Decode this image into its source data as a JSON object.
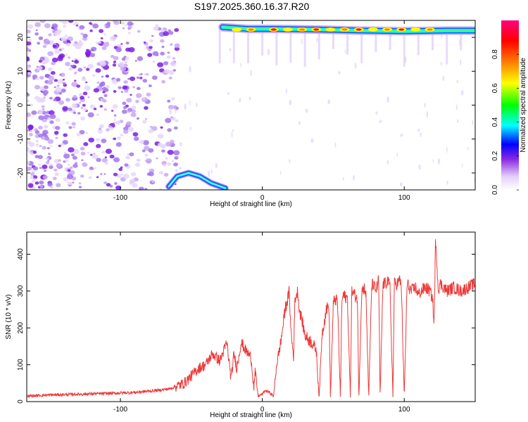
{
  "title": "S197.2025.360.16.37.R20",
  "colors": {
    "series": "#ee3a3a",
    "frame": "#000000"
  },
  "chart_data": [
    {
      "type": "heatmap",
      "xlabel": "Height of straight line (km)",
      "ylabel": "Frequency (Hz)",
      "xlim": [
        -166,
        150
      ],
      "ylim": [
        -25,
        25
      ],
      "xticks": [
        -100,
        0,
        100
      ],
      "yticks": [
        -20,
        -10,
        0,
        10,
        20
      ],
      "xtick_labels": [
        "-100",
        "0",
        "100"
      ],
      "ytick_labels": [
        "-20",
        "-10",
        "0",
        "10",
        "20"
      ],
      "colorbar": {
        "label": "Normalized spectral amplitude",
        "range": [
          0,
          1
        ],
        "ticks": [
          0.0,
          0.2,
          0.4,
          0.6,
          0.8
        ],
        "tick_labels": [
          "0.0",
          "0.2",
          "0.4",
          "0.6",
          "0.8"
        ],
        "colors": [
          "#ffffff",
          "#e4cef8",
          "#8a2be2",
          "#0000ff",
          "#00ffff",
          "#00ff00",
          "#ffff00",
          "#ff8000",
          "#ff0000",
          "#ff0080"
        ]
      },
      "features": [
        {
          "name": "noise",
          "x": [
            -166,
            -65
          ],
          "y": [
            -25,
            25
          ],
          "level": 0.18
        },
        {
          "name": "low-band-trace",
          "points": [
            [
              -66,
              -24
            ],
            [
              -60,
              -21
            ],
            [
              -52,
              -20
            ],
            [
              -44,
              -21
            ],
            [
              -36,
              -23
            ],
            [
              -26,
              -24.5
            ]
          ],
          "level": 0.35
        },
        {
          "name": "high-band-trace",
          "points": [
            [
              -28,
              23
            ],
            [
              -10,
              22.5
            ],
            [
              10,
              22.5
            ],
            [
              40,
              22.3
            ],
            [
              70,
              22
            ],
            [
              100,
              21.8
            ],
            [
              130,
              22
            ],
            [
              150,
              22
            ]
          ],
          "level": 0.7
        }
      ]
    },
    {
      "type": "line",
      "xlabel": "Height of straight line (km)",
      "ylabel": "SNR (10 * v/v)",
      "xlim": [
        -166,
        150
      ],
      "ylim": [
        0,
        460
      ],
      "xticks": [
        -100,
        0,
        100
      ],
      "yticks": [
        0,
        100,
        200,
        300,
        400
      ],
      "xtick_labels": [
        "-100",
        "0",
        "100"
      ],
      "ytick_labels": [
        "0",
        "100",
        "200",
        "300",
        "400"
      ],
      "series": [
        {
          "x": [
            -166,
            -150,
            -130,
            -110,
            -90,
            -75,
            -65,
            -55,
            -50,
            -45,
            -40,
            -35,
            -30,
            -25,
            -22,
            -20,
            -18,
            -15,
            -12,
            -8,
            -6,
            -5,
            -3,
            0,
            2,
            5,
            8,
            10,
            13,
            16,
            18,
            19,
            20,
            22,
            23,
            25,
            26,
            28,
            30,
            32,
            35,
            38,
            40,
            42,
            45,
            47,
            48,
            50,
            51,
            53,
            55,
            56,
            57,
            58,
            60,
            62,
            63,
            65,
            67,
            68,
            70,
            72,
            73,
            75,
            77,
            78,
            80,
            82,
            83,
            85,
            87,
            88,
            90,
            92,
            93,
            95,
            97,
            98,
            100,
            102,
            105,
            108,
            110,
            112,
            115,
            118,
            120,
            121,
            122,
            123,
            124,
            125,
            128,
            130,
            135,
            140,
            145,
            150
          ],
          "values": [
            15,
            18,
            20,
            22,
            25,
            30,
            35,
            50,
            70,
            90,
            100,
            130,
            110,
            160,
            60,
            130,
            90,
            160,
            140,
            120,
            40,
            80,
            15,
            20,
            30,
            25,
            15,
            100,
            160,
            250,
            280,
            300,
            200,
            120,
            280,
            300,
            250,
            220,
            180,
            170,
            160,
            140,
            10,
            180,
            250,
            260,
            10,
            260,
            280,
            270,
            10,
            270,
            290,
            285,
            280,
            10,
            300,
            290,
            280,
            10,
            300,
            310,
            290,
            10,
            310,
            320,
            300,
            330,
            10,
            320,
            320,
            330,
            310,
            10,
            320,
            320,
            330,
            310,
            10,
            320,
            300,
            310,
            290,
            300,
            310,
            300,
            280,
            200,
            430,
            380,
            300,
            320,
            310,
            300,
            310,
            300,
            310,
            320
          ]
        }
      ]
    }
  ]
}
